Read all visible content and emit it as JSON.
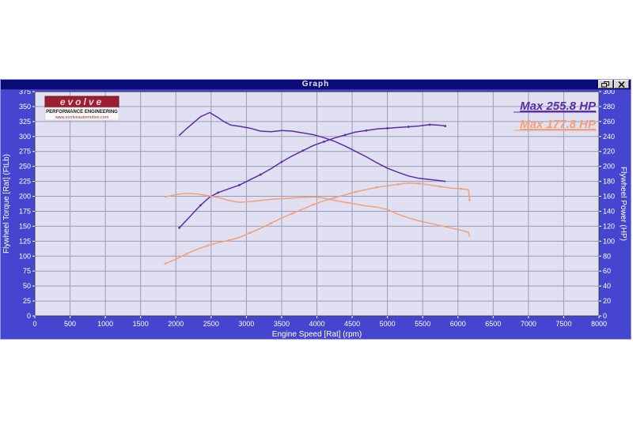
{
  "window": {
    "title": "Graph",
    "restore_button": "restore",
    "close_button": "close"
  },
  "logo": {
    "brand": "evolve",
    "line1": "PERFORMANCE ENGINEERING",
    "line2": "www.evolveautomotive.com"
  },
  "colors": {
    "window_body": "#4545cf",
    "titlebar": "#0b0b78",
    "plot_bg": "#e0e0f2",
    "grid": "#9a9ab6",
    "plot_border": "#404048",
    "tick_text": "#ffffff",
    "run1": "#5b2da6",
    "run2": "#f2a07a",
    "logo_banner": "#9b1e33",
    "logo_panel": "#f8f8f8"
  },
  "chart_data": {
    "type": "line",
    "title": "Graph",
    "xlabel": "Engine Speed [Rat] (rpm)",
    "ylabel_left": "Flywheel Torque [Rat] (FtLb)",
    "ylabel_right": "Flywheel Power (HP)",
    "x_range": [
      0,
      8000
    ],
    "y_left_range": [
      0,
      375
    ],
    "y_right_range": [
      0,
      300
    ],
    "x_ticks": [
      0,
      500,
      1000,
      1500,
      2000,
      2500,
      3000,
      3500,
      4000,
      4500,
      5000,
      5500,
      6000,
      6500,
      7000,
      7500,
      8000
    ],
    "y_left_ticks": [
      375,
      350,
      325,
      300,
      275,
      250,
      225,
      200,
      175,
      150,
      125,
      100,
      75,
      50,
      25,
      0
    ],
    "y_right_ticks": [
      300,
      280,
      260,
      240,
      220,
      200,
      180,
      160,
      140,
      120,
      100,
      80,
      60,
      40,
      20,
      0
    ],
    "grid": true,
    "legend_position": "top-right",
    "annotations": [
      {
        "text": "Max 255.8 HP",
        "color": "#5b2da6"
      },
      {
        "text": "Max 177.8 HP",
        "color": "#f2a07a"
      }
    ],
    "series": [
      {
        "name": "run1-flywheel-torque-ftlb",
        "axis": "left",
        "color": "#5b2da6",
        "markers": false,
        "points": [
          [
            2050,
            302
          ],
          [
            2150,
            313
          ],
          [
            2250,
            323
          ],
          [
            2350,
            333
          ],
          [
            2480,
            340
          ],
          [
            2580,
            333
          ],
          [
            2680,
            325
          ],
          [
            2780,
            319
          ],
          [
            2900,
            317
          ],
          [
            3050,
            314
          ],
          [
            3200,
            309
          ],
          [
            3350,
            308
          ],
          [
            3500,
            310
          ],
          [
            3650,
            309
          ],
          [
            3800,
            306
          ],
          [
            3950,
            303
          ],
          [
            4100,
            298
          ],
          [
            4250,
            292
          ],
          [
            4400,
            284
          ],
          [
            4550,
            275
          ],
          [
            4700,
            266
          ],
          [
            4850,
            256
          ],
          [
            5000,
            247
          ],
          [
            5150,
            240
          ],
          [
            5300,
            234
          ],
          [
            5450,
            230
          ],
          [
            5600,
            228
          ],
          [
            5750,
            226
          ],
          [
            5820,
            225
          ]
        ]
      },
      {
        "name": "run1-flywheel-power-hp",
        "axis": "right",
        "color": "#5b2da6",
        "markers": true,
        "points": [
          [
            2050,
            118
          ],
          [
            2200,
            133
          ],
          [
            2350,
            148
          ],
          [
            2480,
            159
          ],
          [
            2600,
            165
          ],
          [
            2750,
            170
          ],
          [
            2900,
            175
          ],
          [
            3050,
            182
          ],
          [
            3200,
            189
          ],
          [
            3350,
            197
          ],
          [
            3500,
            206
          ],
          [
            3650,
            214
          ],
          [
            3800,
            221
          ],
          [
            3950,
            228
          ],
          [
            4100,
            233
          ],
          [
            4250,
            238
          ],
          [
            4400,
            242
          ],
          [
            4550,
            246
          ],
          [
            4700,
            248
          ],
          [
            4850,
            250
          ],
          [
            5000,
            251
          ],
          [
            5150,
            252
          ],
          [
            5300,
            253
          ],
          [
            5450,
            254
          ],
          [
            5600,
            255.8
          ],
          [
            5750,
            255
          ],
          [
            5820,
            254
          ]
        ]
      },
      {
        "name": "run2-flywheel-torque-ftlb",
        "axis": "left",
        "color": "#f2a07a",
        "markers": false,
        "points": [
          [
            1850,
            199
          ],
          [
            2000,
            203
          ],
          [
            2150,
            205
          ],
          [
            2300,
            204
          ],
          [
            2450,
            201
          ],
          [
            2600,
            198
          ],
          [
            2750,
            193
          ],
          [
            2900,
            190
          ],
          [
            3050,
            191
          ],
          [
            3200,
            193
          ],
          [
            3350,
            195
          ],
          [
            3500,
            196
          ],
          [
            3650,
            197
          ],
          [
            3800,
            198
          ],
          [
            3950,
            199
          ],
          [
            4100,
            197
          ],
          [
            4250,
            193
          ],
          [
            4400,
            190
          ],
          [
            4550,
            187
          ],
          [
            4700,
            184
          ],
          [
            4850,
            182
          ],
          [
            5000,
            178
          ],
          [
            5150,
            170
          ],
          [
            5300,
            164
          ],
          [
            5450,
            159
          ],
          [
            5600,
            155
          ],
          [
            5750,
            151
          ],
          [
            5900,
            147
          ],
          [
            6050,
            143
          ],
          [
            6150,
            140
          ],
          [
            6165,
            133
          ]
        ]
      },
      {
        "name": "run2-flywheel-power-hp",
        "axis": "right",
        "color": "#f2a07a",
        "markers": true,
        "points": [
          [
            1850,
            70
          ],
          [
            2000,
            76
          ],
          [
            2150,
            83
          ],
          [
            2300,
            89
          ],
          [
            2450,
            94
          ],
          [
            2600,
            98
          ],
          [
            2750,
            101
          ],
          [
            2900,
            105
          ],
          [
            3050,
            111
          ],
          [
            3200,
            117
          ],
          [
            3350,
            124
          ],
          [
            3500,
            131
          ],
          [
            3650,
            137
          ],
          [
            3800,
            143
          ],
          [
            3950,
            149
          ],
          [
            4100,
            154
          ],
          [
            4250,
            158
          ],
          [
            4400,
            162
          ],
          [
            4550,
            166
          ],
          [
            4700,
            169
          ],
          [
            4850,
            172
          ],
          [
            5000,
            174
          ],
          [
            5150,
            176
          ],
          [
            5300,
            177.8
          ],
          [
            5450,
            177
          ],
          [
            5600,
            175
          ],
          [
            5750,
            173
          ],
          [
            5900,
            171
          ],
          [
            6050,
            170
          ],
          [
            6150,
            169
          ],
          [
            6165,
            155
          ]
        ]
      }
    ]
  }
}
